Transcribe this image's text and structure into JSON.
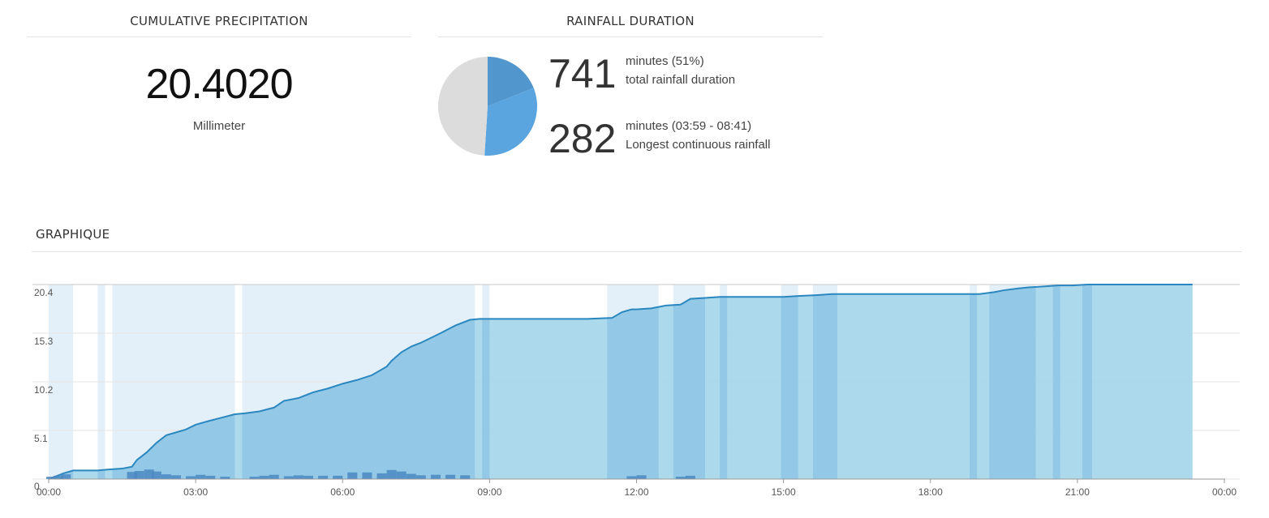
{
  "precipitation": {
    "title": "CUMULATIVE PRECIPITATION",
    "value": "20.4020",
    "unit": "Millimeter"
  },
  "duration": {
    "title": "RAINFALL DURATION",
    "total": {
      "number": "741",
      "line1": "minutes (51%)",
      "line2": "total rainfall duration"
    },
    "longest": {
      "number": "282",
      "line1": "minutes (03:59 - 08:41)",
      "line2": "Longest continuous rainfall"
    }
  },
  "graph": {
    "title": "GRAPHIQUE"
  },
  "chart_data": [
    {
      "type": "pie",
      "slices": [
        {
          "value": 19,
          "color": "#5196cc"
        },
        {
          "value": 32,
          "color": "#5aa5e0"
        },
        {
          "value": 49,
          "color": "#dcdcdc"
        }
      ]
    },
    {
      "type": "area",
      "x_unit": "hours",
      "xlim": [
        0,
        24
      ],
      "ylim": [
        0,
        20.4
      ],
      "y_ticks": [
        "20.4",
        "15.3",
        "10.2",
        "5.1",
        "0"
      ],
      "y_tick_values": [
        20.4,
        15.3,
        10.2,
        5.1,
        0
      ],
      "x_ticks": [
        "00:00",
        "03:00",
        "06:00",
        "09:00",
        "12:00",
        "15:00",
        "18:00",
        "21:00",
        "00:00"
      ],
      "x_tick_values": [
        0,
        3,
        6,
        9,
        12,
        15,
        18,
        21,
        24
      ],
      "grid": true,
      "colors": {
        "area": "#a3d6ea",
        "line": "#2b87bf",
        "bars": "#4a88c2",
        "rain_band": "#5aa0d8"
      },
      "cumulative": {
        "x": [
          0,
          0.3,
          0.5,
          1.0,
          1.2,
          1.5,
          1.7,
          1.8,
          2.0,
          2.2,
          2.4,
          2.6,
          2.8,
          3.0,
          3.2,
          3.5,
          3.8,
          4.0,
          4.3,
          4.6,
          4.8,
          5.1,
          5.4,
          5.7,
          6.0,
          6.3,
          6.6,
          6.9,
          7.0,
          7.2,
          7.4,
          7.6,
          7.8,
          8.0,
          8.3,
          8.6,
          8.8,
          9.0,
          10.0,
          11.0,
          11.5,
          11.7,
          11.9,
          12.0,
          12.3,
          12.6,
          12.9,
          13.1,
          13.4,
          13.7,
          14.0,
          14.5,
          15.0,
          15.3,
          15.7,
          16.0,
          16.5,
          17.0,
          17.5,
          18.0,
          18.5,
          19.0,
          19.3,
          19.5,
          19.8,
          20.0,
          20.3,
          20.6,
          20.9,
          21.2,
          21.5,
          22.0,
          22.5,
          23.0,
          23.35
        ],
        "y": [
          0,
          0.6,
          0.9,
          0.9,
          1.0,
          1.1,
          1.3,
          2.0,
          2.8,
          3.8,
          4.6,
          4.9,
          5.2,
          5.7,
          6.0,
          6.4,
          6.8,
          6.9,
          7.1,
          7.5,
          8.2,
          8.5,
          9.1,
          9.5,
          10.0,
          10.4,
          10.9,
          11.8,
          12.4,
          13.3,
          13.9,
          14.3,
          14.8,
          15.3,
          16.1,
          16.7,
          16.8,
          16.8,
          16.8,
          16.8,
          16.9,
          17.5,
          17.8,
          17.8,
          17.9,
          18.2,
          18.3,
          18.9,
          19.0,
          19.1,
          19.1,
          19.1,
          19.1,
          19.2,
          19.3,
          19.4,
          19.4,
          19.4,
          19.4,
          19.4,
          19.4,
          19.4,
          19.6,
          19.8,
          20.0,
          20.1,
          20.2,
          20.3,
          20.3,
          20.4,
          20.4,
          20.4,
          20.4,
          20.4,
          20.4
        ]
      },
      "rain_bands": [
        [
          0,
          0.5
        ],
        [
          1.0,
          1.15
        ],
        [
          1.3,
          3.8
        ],
        [
          3.95,
          8.7
        ],
        [
          8.85,
          9.0
        ],
        [
          11.4,
          12.45
        ],
        [
          12.75,
          13.4
        ],
        [
          13.7,
          13.85
        ],
        [
          14.95,
          15.3
        ],
        [
          15.6,
          16.1
        ],
        [
          18.8,
          18.95
        ],
        [
          19.2,
          20.15
        ],
        [
          20.5,
          20.65
        ],
        [
          21.1,
          21.3
        ]
      ],
      "bars": {
        "x": [
          0.05,
          0.2,
          0.35,
          1.7,
          1.85,
          2.05,
          2.2,
          2.4,
          2.6,
          2.9,
          3.1,
          3.3,
          3.6,
          4.2,
          4.4,
          4.6,
          4.9,
          5.1,
          5.3,
          5.6,
          5.9,
          6.2,
          6.5,
          6.8,
          7.0,
          7.2,
          7.4,
          7.6,
          7.9,
          8.2,
          8.5,
          11.9,
          12.1,
          12.9,
          13.1
        ],
        "y": [
          0.25,
          0.35,
          0.5,
          0.75,
          0.85,
          1.0,
          0.8,
          0.5,
          0.4,
          0.3,
          0.45,
          0.35,
          0.25,
          0.25,
          0.35,
          0.45,
          0.3,
          0.4,
          0.35,
          0.35,
          0.35,
          0.7,
          0.7,
          0.6,
          0.95,
          0.8,
          0.55,
          0.4,
          0.45,
          0.45,
          0.4,
          0.3,
          0.4,
          0.25,
          0.35
        ]
      }
    }
  ]
}
